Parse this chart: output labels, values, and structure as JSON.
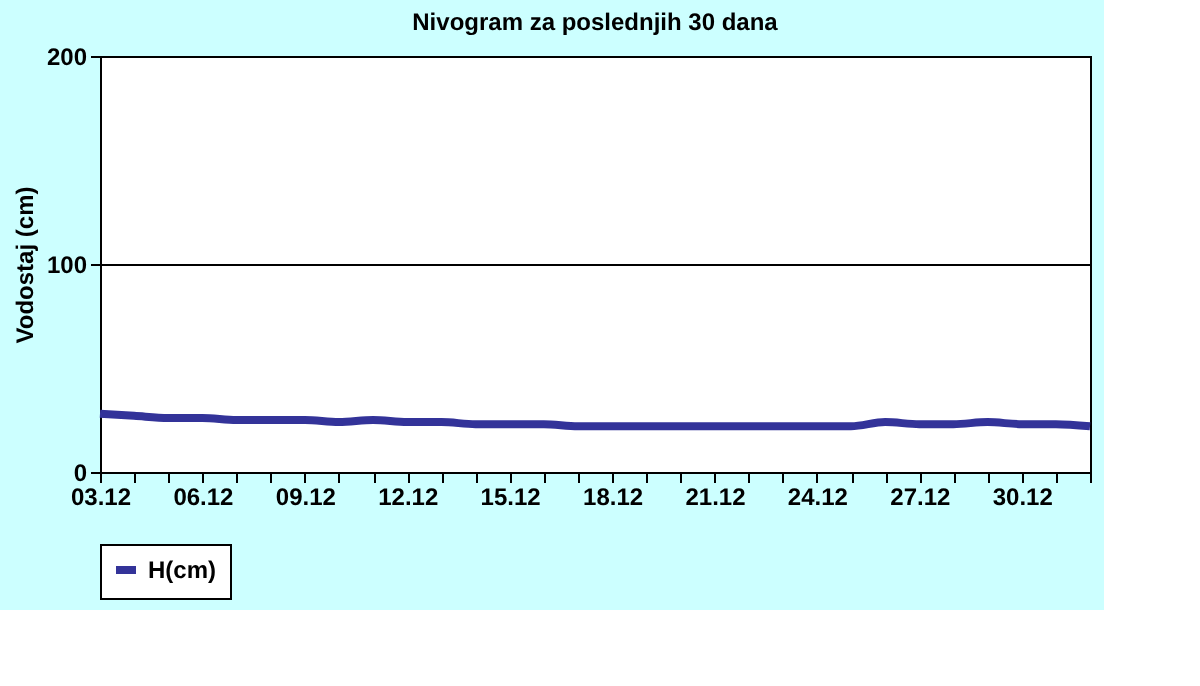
{
  "chart_data": {
    "type": "line",
    "title": "Nivogram za poslednjih 30 dana",
    "ylabel": "Vodostaj (cm)",
    "categories": [
      "03.12",
      null,
      null,
      "06.12",
      null,
      null,
      "09.12",
      null,
      null,
      "12.12",
      null,
      null,
      "15.12",
      null,
      null,
      "18.12",
      null,
      null,
      "21.12",
      null,
      null,
      "24.12",
      null,
      null,
      "27.12",
      null,
      null,
      "30.12",
      null,
      null
    ],
    "series": [
      {
        "name": "H(cm)",
        "color": "#333399",
        "values": [
          28,
          27,
          26,
          26,
          25,
          25,
          25,
          24,
          25,
          24,
          24,
          23,
          23,
          23,
          22,
          22,
          22,
          22,
          22,
          22,
          22,
          22,
          22,
          24,
          23,
          23,
          24,
          23,
          23,
          22
        ]
      }
    ],
    "ylim": [
      0,
      200
    ],
    "yticks": [
      0,
      100,
      200
    ],
    "grid": "y",
    "legend": "bottom",
    "marker": "none",
    "line_style": "solid"
  }
}
